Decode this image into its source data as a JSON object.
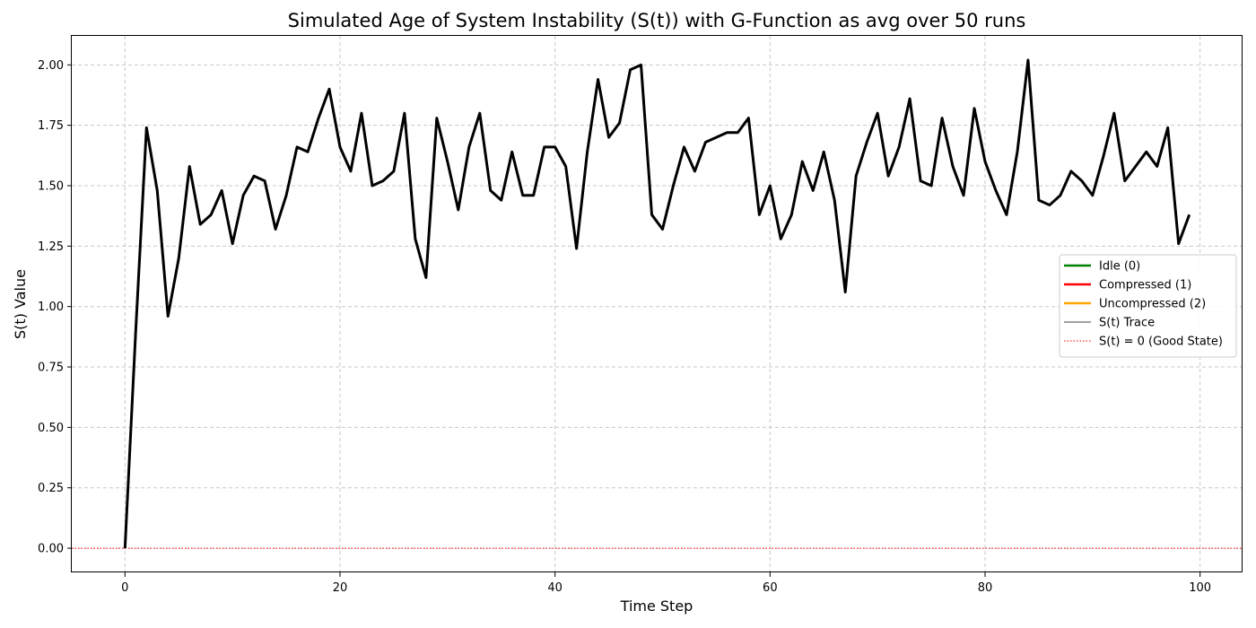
{
  "chart_data": {
    "type": "line",
    "title": "Simulated Age of System Instability (S(t)) with G-Function as avg over 50 runs",
    "xlabel": "Time Step",
    "ylabel": "S(t) Value",
    "xlim": [
      -4.95,
      103.95
    ],
    "ylim": [
      -0.1,
      2.12
    ],
    "xticks": [
      0,
      20,
      40,
      60,
      80,
      100
    ],
    "yticks": [
      0.0,
      0.25,
      0.5,
      0.75,
      1.0,
      1.25,
      1.5,
      1.75,
      2.0
    ],
    "grid": true,
    "legend_position": "right",
    "legend": [
      {
        "label": "Idle (0)",
        "color": "#008000",
        "style": "solid-thick"
      },
      {
        "label": "Compressed (1)",
        "color": "#ff0000",
        "style": "solid-thick"
      },
      {
        "label": "Uncompressed (2)",
        "color": "#ffa500",
        "style": "solid-thick"
      },
      {
        "label": "S(t) Trace",
        "color": "#000000",
        "style": "solid-thin"
      },
      {
        "label": "S(t) = 0 (Good State)",
        "color": "#ff0000",
        "style": "dotted"
      }
    ],
    "reference_line": {
      "y": 0,
      "color": "#ff0000",
      "style": "dotted"
    },
    "series": [
      {
        "color": "#000000",
        "x": [
          0,
          1,
          2,
          3,
          4,
          5,
          6,
          7,
          8,
          9,
          10,
          11,
          12,
          13,
          14,
          15,
          16,
          17,
          18,
          19,
          20,
          21,
          22,
          23,
          24,
          25,
          26,
          27,
          28,
          29,
          30,
          31,
          32,
          33,
          34,
          35,
          36,
          37,
          38,
          39,
          40,
          41,
          42,
          43,
          44,
          45,
          46,
          47,
          48,
          49,
          50,
          51,
          52,
          53,
          54,
          55,
          56,
          57,
          58,
          59,
          60,
          61,
          62,
          63,
          64,
          65,
          66,
          67,
          68,
          69,
          70,
          71,
          72,
          73,
          74,
          75,
          76,
          77,
          78,
          79,
          80,
          81,
          82,
          83,
          84,
          85,
          86,
          87,
          88,
          89,
          90,
          91,
          92,
          93,
          94,
          95,
          96,
          97,
          98,
          99
        ],
        "values": [
          0.0,
          0.9,
          1.74,
          1.48,
          0.96,
          1.2,
          1.58,
          1.34,
          1.38,
          1.48,
          1.26,
          1.46,
          1.54,
          1.52,
          1.32,
          1.46,
          1.66,
          1.64,
          1.78,
          1.9,
          1.66,
          1.56,
          1.8,
          1.5,
          1.52,
          1.56,
          1.8,
          1.28,
          1.12,
          1.78,
          1.6,
          1.4,
          1.66,
          1.8,
          1.48,
          1.44,
          1.64,
          1.46,
          1.46,
          1.66,
          1.66,
          1.58,
          1.24,
          1.64,
          1.94,
          1.7,
          1.76,
          1.98,
          2.0,
          1.38,
          1.32,
          1.5,
          1.66,
          1.56,
          1.68,
          1.7,
          1.72,
          1.72,
          1.78,
          1.38,
          1.5,
          1.28,
          1.38,
          1.6,
          1.48,
          1.64,
          1.44,
          1.06,
          1.54,
          1.68,
          1.8,
          1.54,
          1.66,
          1.86,
          1.52,
          1.5,
          1.78,
          1.58,
          1.46,
          1.82,
          1.6,
          1.48,
          1.38,
          1.64,
          2.02,
          1.44,
          1.42,
          1.46,
          1.56,
          1.52,
          1.46,
          1.62,
          1.8,
          1.52,
          1.58,
          1.64,
          1.58,
          1.74,
          1.26,
          1.38
        ]
      }
    ]
  }
}
